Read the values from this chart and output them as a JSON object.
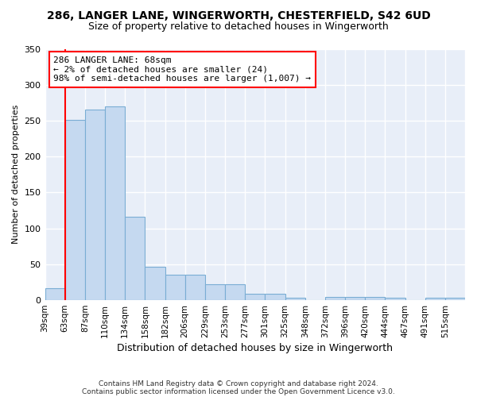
{
  "title1": "286, LANGER LANE, WINGERWORTH, CHESTERFIELD, S42 6UD",
  "title2": "Size of property relative to detached houses in Wingerworth",
  "xlabel": "Distribution of detached houses by size in Wingerworth",
  "ylabel": "Number of detached properties",
  "bin_labels": [
    "39sqm",
    "63sqm",
    "87sqm",
    "110sqm",
    "134sqm",
    "158sqm",
    "182sqm",
    "206sqm",
    "229sqm",
    "253sqm",
    "277sqm",
    "301sqm",
    "325sqm",
    "348sqm",
    "372sqm",
    "396sqm",
    "420sqm",
    "444sqm",
    "467sqm",
    "491sqm",
    "515sqm"
  ],
  "bar_heights": [
    17,
    251,
    265,
    270,
    116,
    46,
    35,
    36,
    22,
    22,
    9,
    9,
    3,
    0,
    4,
    5,
    4,
    3,
    0,
    3,
    3
  ],
  "bar_color": "#c5d9f0",
  "bar_edge_color": "#7aadd4",
  "red_line_x": 1.0,
  "annotation_text": "286 LANGER LANE: 68sqm\n← 2% of detached houses are smaller (24)\n98% of semi-detached houses are larger (1,007) →",
  "ylim": [
    0,
    350
  ],
  "yticks": [
    0,
    50,
    100,
    150,
    200,
    250,
    300,
    350
  ],
  "footer1": "Contains HM Land Registry data © Crown copyright and database right 2024.",
  "footer2": "Contains public sector information licensed under the Open Government Licence v3.0.",
  "bg_color": "#ffffff",
  "plot_bg_color": "#e8eef8",
  "grid_color": "#ffffff"
}
